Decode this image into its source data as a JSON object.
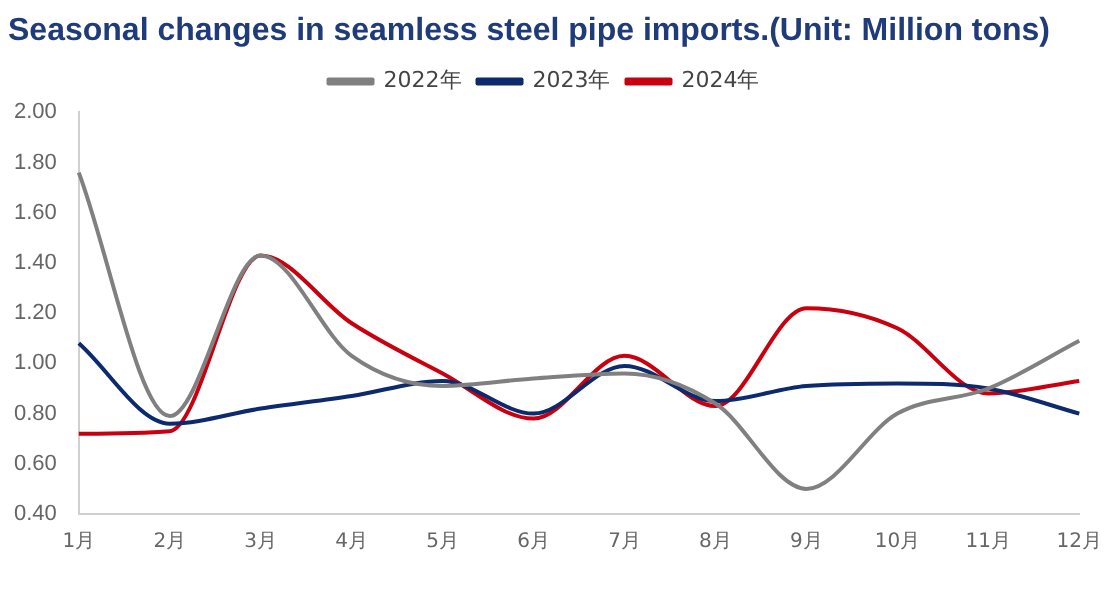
{
  "chart_data": {
    "type": "line",
    "title": "Seasonal changes in seamless steel pipe imports.(Unit: Million tons)",
    "categories": [
      "1月",
      "2月",
      "3月",
      "4月",
      "5月",
      "6月",
      "7月",
      "8月",
      "9月",
      "10月",
      "11月",
      "12月"
    ],
    "series": [
      {
        "name": "2022年",
        "color": "#808080",
        "values": [
          1.76,
          0.79,
          1.43,
          1.03,
          0.91,
          0.94,
          0.96,
          0.84,
          0.5,
          0.8,
          0.9,
          1.09
        ]
      },
      {
        "name": "2023年",
        "color": "#0d2a6e",
        "values": [
          1.08,
          0.76,
          0.82,
          0.87,
          0.93,
          0.8,
          0.99,
          0.85,
          0.91,
          0.92,
          0.9,
          0.8
        ]
      },
      {
        "name": "2024年",
        "color": "#c8000f",
        "values": [
          0.72,
          0.73,
          1.43,
          1.16,
          0.96,
          0.78,
          1.03,
          0.83,
          1.22,
          1.14,
          0.88,
          0.93
        ]
      }
    ],
    "ylim": [
      0.4,
      2.0
    ],
    "yticks": [
      {
        "value": 0.4,
        "label": "0.40"
      },
      {
        "value": 0.6,
        "label": "0.60"
      },
      {
        "value": 0.8,
        "label": "0.80"
      },
      {
        "value": 1.0,
        "label": "1.00"
      },
      {
        "value": 1.2,
        "label": "1.20"
      },
      {
        "value": 1.4,
        "label": "1.40"
      },
      {
        "value": 1.6,
        "label": "1.60"
      },
      {
        "value": 1.8,
        "label": "1.80"
      },
      {
        "value": 2.0,
        "label": "2.00"
      }
    ],
    "grid": false,
    "legend": "top",
    "marker": "none",
    "line_style": "solid"
  }
}
